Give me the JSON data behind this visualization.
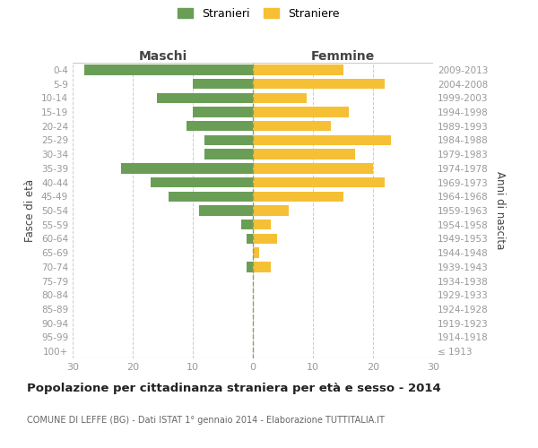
{
  "age_groups": [
    "100+",
    "95-99",
    "90-94",
    "85-89",
    "80-84",
    "75-79",
    "70-74",
    "65-69",
    "60-64",
    "55-59",
    "50-54",
    "45-49",
    "40-44",
    "35-39",
    "30-34",
    "25-29",
    "20-24",
    "15-19",
    "10-14",
    "5-9",
    "0-4"
  ],
  "birth_years": [
    "≤ 1913",
    "1914-1918",
    "1919-1923",
    "1924-1928",
    "1929-1933",
    "1934-1938",
    "1939-1943",
    "1944-1948",
    "1949-1953",
    "1954-1958",
    "1959-1963",
    "1964-1968",
    "1969-1973",
    "1974-1978",
    "1979-1983",
    "1984-1988",
    "1989-1993",
    "1994-1998",
    "1999-2003",
    "2004-2008",
    "2009-2013"
  ],
  "maschi": [
    0,
    0,
    0,
    0,
    0,
    0,
    1,
    0,
    1,
    2,
    9,
    14,
    17,
    22,
    8,
    8,
    11,
    10,
    16,
    10,
    28
  ],
  "femmine": [
    0,
    0,
    0,
    0,
    0,
    0,
    3,
    1,
    4,
    3,
    6,
    15,
    22,
    20,
    17,
    23,
    13,
    16,
    9,
    22,
    15
  ],
  "maschi_color": "#6a9e57",
  "femmine_color": "#f5c035",
  "title": "Popolazione per cittadinanza straniera per età e sesso - 2014",
  "subtitle": "COMUNE DI LEFFE (BG) - Dati ISTAT 1° gennaio 2014 - Elaborazione TUTTITALIA.IT",
  "xlabel_left": "Maschi",
  "xlabel_right": "Femmine",
  "ylabel_left": "Fasce di età",
  "ylabel_right": "Anni di nascita",
  "xlim": 30,
  "legend_stranieri": "Stranieri",
  "legend_straniere": "Straniere",
  "bar_height": 0.72,
  "background_color": "#ffffff",
  "grid_color": "#cccccc",
  "tick_label_color": "#999999",
  "header_color": "#444444",
  "title_color": "#222222",
  "subtitle_color": "#666666",
  "dashed_line_color": "#999966"
}
